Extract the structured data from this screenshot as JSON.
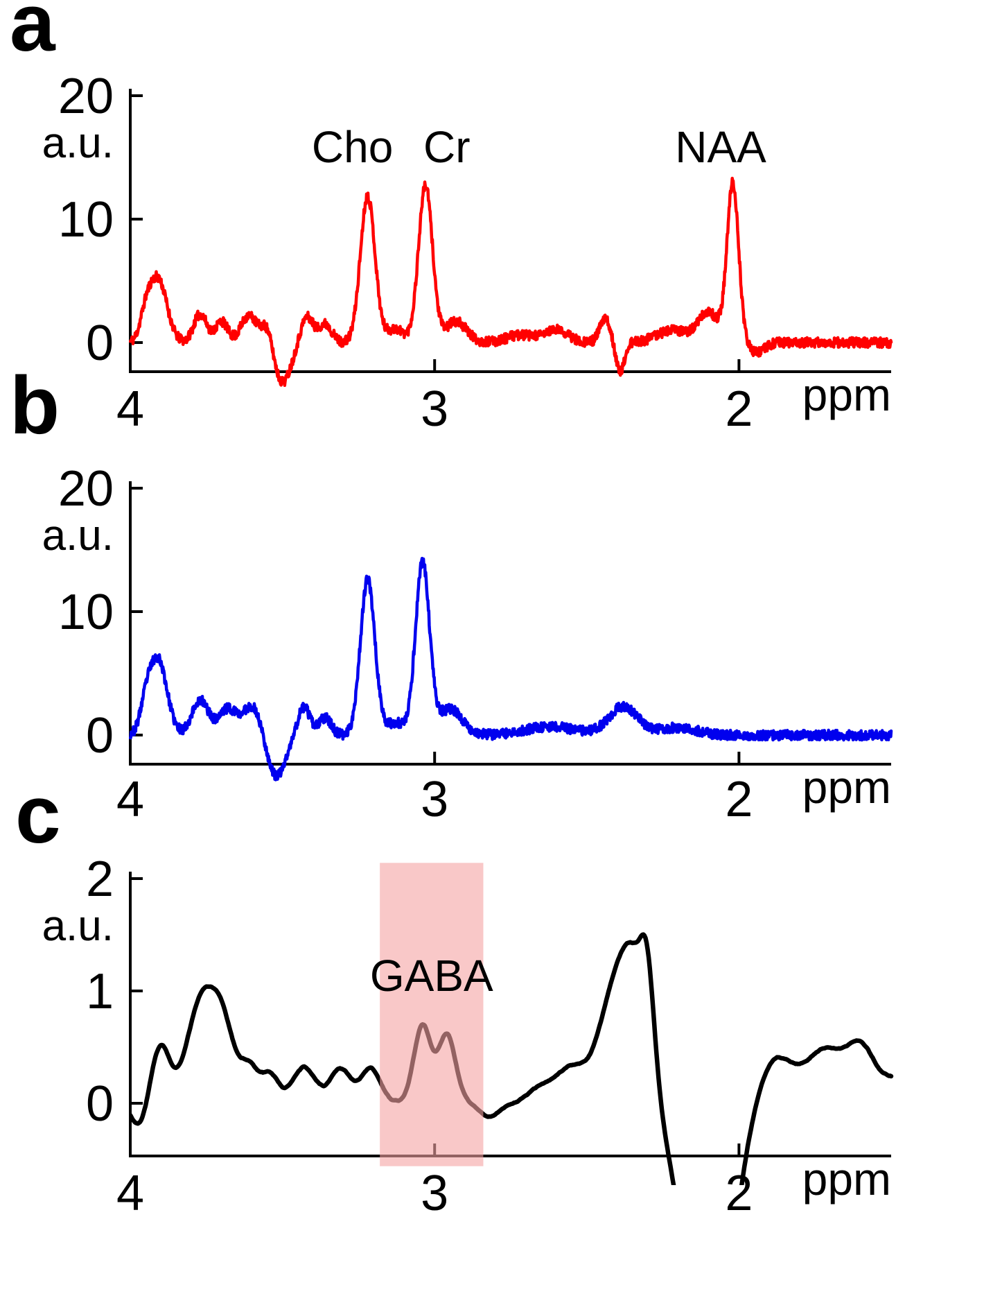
{
  "panels": [
    {
      "label": "a"
    },
    {
      "label": "b"
    },
    {
      "label": "c"
    }
  ],
  "chart_data": [
    {
      "type": "line",
      "panel": "a",
      "description": "MRS spectrum, unedited (red)",
      "line_color": "#ff0000",
      "ylabel": "a.u.",
      "xlabel": "ppm",
      "x_ticks": [
        4,
        3,
        2
      ],
      "y_ticks": [
        0,
        10,
        20
      ],
      "x_range": [
        4.0,
        1.5
      ],
      "y_range": [
        -2.4,
        21.0
      ],
      "x_reversed": true,
      "annotations": [
        {
          "text": "Cho",
          "ppm": 3.27,
          "value": 14.6
        },
        {
          "text": "Cr",
          "ppm": 2.96,
          "value": 14.6
        },
        {
          "text": "NAA",
          "ppm": 2.06,
          "value": 14.6
        }
      ],
      "noise": {
        "amplitude": 0.4,
        "seed": 11
      },
      "peaks": [
        {
          "ppm": 3.95,
          "amp": 1.5,
          "w": 0.018
        },
        {
          "ppm": 3.91,
          "amp": 5.2,
          "w": 0.03
        },
        {
          "ppm": 3.77,
          "amp": 2.3,
          "w": 0.022
        },
        {
          "ppm": 3.7,
          "amp": 1.7,
          "w": 0.02
        },
        {
          "ppm": 3.61,
          "amp": 2.2,
          "w": 0.026
        },
        {
          "ppm": 3.55,
          "amp": 1.6,
          "w": 0.018
        },
        {
          "ppm": 3.5,
          "amp": -3.2,
          "w": 0.028
        },
        {
          "ppm": 3.42,
          "amp": 2.1,
          "w": 0.02
        },
        {
          "ppm": 3.36,
          "amp": 1.5,
          "w": 0.022
        },
        {
          "ppm": 3.22,
          "amp": 11.9,
          "w": 0.024
        },
        {
          "ppm": 3.13,
          "amp": 1.1,
          "w": 0.03
        },
        {
          "ppm": 3.03,
          "amp": 12.7,
          "w": 0.023
        },
        {
          "ppm": 2.93,
          "amp": 1.7,
          "w": 0.035
        },
        {
          "ppm": 2.72,
          "amp": 0.6,
          "w": 0.045
        },
        {
          "ppm": 2.6,
          "amp": 1.0,
          "w": 0.04
        },
        {
          "ppm": 2.44,
          "amp": 1.9,
          "w": 0.018
        },
        {
          "ppm": 2.39,
          "amp": -2.4,
          "w": 0.014
        },
        {
          "ppm": 2.22,
          "amp": 1.0,
          "w": 0.05
        },
        {
          "ppm": 2.1,
          "amp": 2.4,
          "w": 0.035
        },
        {
          "ppm": 2.02,
          "amp": 12.8,
          "w": 0.019
        },
        {
          "ppm": 1.94,
          "amp": -0.8,
          "w": 0.025
        }
      ]
    },
    {
      "type": "line",
      "panel": "b",
      "description": "MRS spectrum, edited (blue), NAA suppressed",
      "line_color": "#0000ee",
      "ylabel": "a.u.",
      "xlabel": "ppm",
      "x_ticks": [
        4,
        3,
        2
      ],
      "y_ticks": [
        0,
        10,
        20
      ],
      "x_range": [
        4.0,
        1.5
      ],
      "y_range": [
        -2.4,
        21.0
      ],
      "x_reversed": true,
      "annotations": [],
      "noise": {
        "amplitude": 0.4,
        "seed": 23
      },
      "peaks": [
        {
          "ppm": 3.95,
          "amp": 1.5,
          "w": 0.018
        },
        {
          "ppm": 3.91,
          "amp": 6.2,
          "w": 0.03
        },
        {
          "ppm": 3.77,
          "amp": 2.8,
          "w": 0.028
        },
        {
          "ppm": 3.68,
          "amp": 2.1,
          "w": 0.028
        },
        {
          "ppm": 3.6,
          "amp": 2.4,
          "w": 0.03
        },
        {
          "ppm": 3.52,
          "amp": -3.4,
          "w": 0.03
        },
        {
          "ppm": 3.43,
          "amp": 2.3,
          "w": 0.02
        },
        {
          "ppm": 3.36,
          "amp": 1.4,
          "w": 0.02
        },
        {
          "ppm": 3.22,
          "amp": 12.6,
          "w": 0.024
        },
        {
          "ppm": 3.13,
          "amp": 1.0,
          "w": 0.03
        },
        {
          "ppm": 3.04,
          "amp": 13.9,
          "w": 0.023
        },
        {
          "ppm": 2.95,
          "amp": 2.1,
          "w": 0.04
        },
        {
          "ppm": 2.62,
          "amp": 0.7,
          "w": 0.08
        },
        {
          "ppm": 2.38,
          "amp": 2.3,
          "w": 0.048
        },
        {
          "ppm": 2.2,
          "amp": 0.6,
          "w": 0.06
        }
      ]
    },
    {
      "type": "line",
      "panel": "c",
      "description": "Difference spectrum (black) with GABA peak highlighted",
      "line_color": "#000000",
      "ylabel": "a.u.",
      "xlabel": "ppm",
      "x_ticks": [
        4,
        3,
        2
      ],
      "y_ticks": [
        0,
        1,
        2
      ],
      "x_range": [
        4.0,
        1.5
      ],
      "y_range": [
        -0.47,
        2.2
      ],
      "x_reversed": true,
      "annotations": [
        {
          "text": "GABA",
          "ppm": 3.01,
          "value": 1.0
        }
      ],
      "band": {
        "label": "GABA",
        "ppm_from": 3.18,
        "ppm_to": 2.84,
        "top_value": 2.14,
        "bottom_value": -0.56,
        "color": "#f5a3a3",
        "opacity": 0.6
      },
      "noise": {
        "amplitude": 0.05,
        "seed": 3
      },
      "peaks": [
        {
          "ppm": 3.97,
          "amp": -0.2,
          "w": 0.025
        },
        {
          "ppm": 3.9,
          "amp": 0.5,
          "w": 0.03
        },
        {
          "ppm": 3.76,
          "amp": 0.95,
          "w": 0.05
        },
        {
          "ppm": 3.69,
          "amp": 0.45,
          "w": 0.035
        },
        {
          "ppm": 3.61,
          "amp": 0.33,
          "w": 0.03
        },
        {
          "ppm": 3.54,
          "amp": 0.25,
          "w": 0.028
        },
        {
          "ppm": 3.43,
          "amp": 0.33,
          "w": 0.038
        },
        {
          "ppm": 3.31,
          "amp": 0.3,
          "w": 0.035
        },
        {
          "ppm": 3.21,
          "amp": 0.3,
          "w": 0.032
        },
        {
          "ppm": 3.04,
          "amp": 0.68,
          "w": 0.028
        },
        {
          "ppm": 2.96,
          "amp": 0.62,
          "w": 0.028
        },
        {
          "ppm": 2.82,
          "amp": -0.12,
          "w": 0.03
        },
        {
          "ppm": 2.66,
          "amp": 0.14,
          "w": 0.04
        },
        {
          "ppm": 2.55,
          "amp": 0.32,
          "w": 0.05
        },
        {
          "ppm": 2.43,
          "amp": 0.65,
          "w": 0.045
        },
        {
          "ppm": 2.35,
          "amp": 1.25,
          "w": 0.048
        },
        {
          "ppm": 2.3,
          "amp": 0.7,
          "w": 0.022
        },
        {
          "ppm": 2.1,
          "amp": -2.4,
          "w": 0.075
        },
        {
          "ppm": 1.88,
          "amp": 0.42,
          "w": 0.065
        },
        {
          "ppm": 1.72,
          "amp": 0.45,
          "w": 0.055
        },
        {
          "ppm": 1.6,
          "amp": 0.5,
          "w": 0.05
        },
        {
          "ppm": 1.48,
          "amp": 0.2,
          "w": 0.04
        }
      ]
    }
  ]
}
